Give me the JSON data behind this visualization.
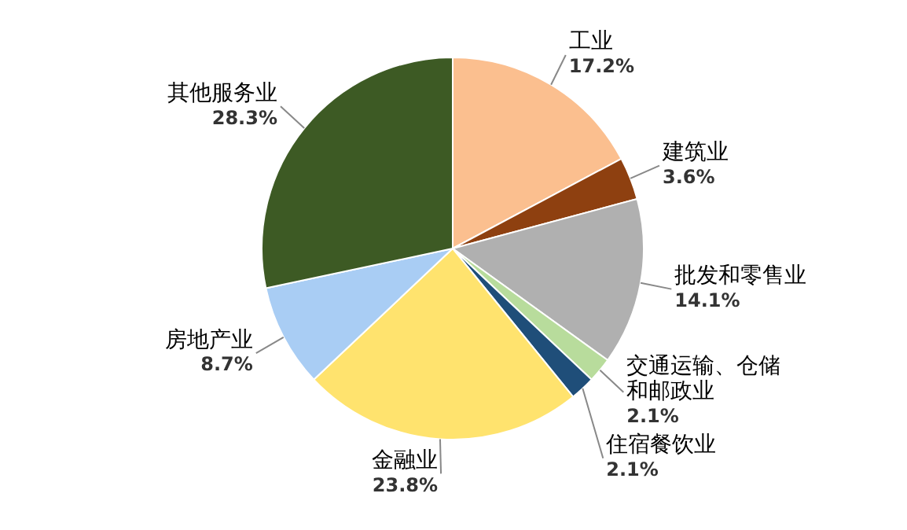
{
  "chart_data": {
    "type": "pie",
    "categories": [
      "工业",
      "建筑业",
      "批发和零售业",
      "交通运输、仓储和邮政业",
      "住宿餐饮业",
      "金融业",
      "房地产业",
      "其他服务业"
    ],
    "values": [
      17.2,
      3.6,
      14.1,
      2.1,
      2.1,
      23.8,
      8.7,
      28.3
    ],
    "colors": [
      "#fbbf8f",
      "#8e4010",
      "#b0b0b0",
      "#b8dc9c",
      "#1f4e79",
      "#ffe36e",
      "#a9cdf4",
      "#3d5a24"
    ],
    "value_labels": [
      "17.2%",
      "3.6%",
      "14.1%",
      "2.1%",
      "2.1%",
      "23.8%",
      "8.7%",
      "28.3%"
    ],
    "legend": false
  }
}
